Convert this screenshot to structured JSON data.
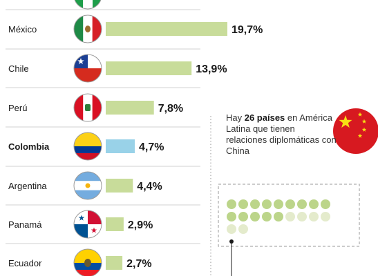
{
  "colors": {
    "bar": "#c8dc9a",
    "highlight_bar": "#99d2e8",
    "divider": "#d0d0d0",
    "dot_dark": "#bcd58a",
    "dot_light": "#e4ebcc",
    "china_red": "#d71920",
    "china_star": "#f7e014"
  },
  "chart_data": {
    "type": "bar",
    "orientation": "horizontal",
    "categories": [
      "México",
      "Chile",
      "Perú",
      "Colombia",
      "Argentina",
      "Panamá",
      "Ecuador"
    ],
    "values": [
      19.7,
      13.9,
      7.8,
      4.7,
      4.4,
      2.9,
      2.7
    ],
    "value_labels": [
      "19,7%",
      "13,9%",
      "7,8%",
      "4,7%",
      "4,4%",
      "2,9%",
      "2,7%"
    ],
    "highlighted": "Colombia",
    "flag_icons": [
      "mexico-flag-icon",
      "chile-flag-icon",
      "peru-flag-icon",
      "colombia-flag-icon",
      "argentina-flag-icon",
      "panama-flag-icon",
      "ecuador-flag-icon"
    ]
  },
  "info": {
    "text_before": "Hay ",
    "text_bold": "26 países",
    "text_after": " en América Latina que tienen relaciones diplomáticas con China",
    "icon": "china-flag-icon",
    "dots_total": 20,
    "dots_highlighted": 14
  }
}
